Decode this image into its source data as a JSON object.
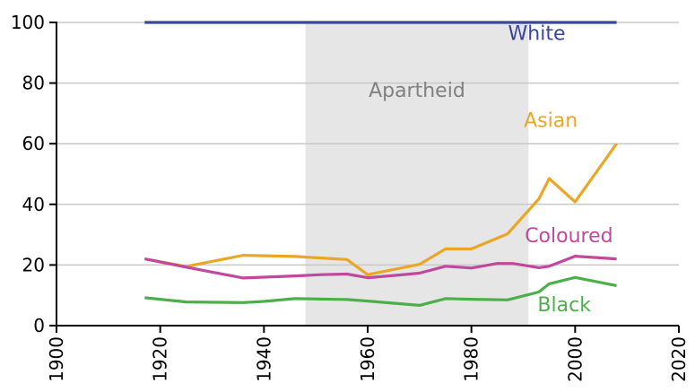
{
  "chart_data": {
    "type": "line",
    "title": "",
    "xlabel": "",
    "ylabel": "",
    "xlim": [
      1900,
      2020
    ],
    "ylim": [
      0,
      100
    ],
    "x_ticks": [
      "1900",
      "1920",
      "1940",
      "1960",
      "1980",
      "2000",
      "2020"
    ],
    "y_ticks": [
      "0",
      "20",
      "40",
      "60",
      "80",
      "100"
    ],
    "grid": "horizontal",
    "shaded_period": {
      "label": "Apartheid",
      "start": 1948,
      "end": 1991,
      "color": "#e6e6e6",
      "label_color": "#808080"
    },
    "series": [
      {
        "name": "White",
        "color": "#3a4799",
        "points": [
          [
            1917,
            100
          ],
          [
            2008,
            100
          ]
        ]
      },
      {
        "name": "Asian",
        "color": "#e8a726",
        "points": [
          [
            1917,
            22
          ],
          [
            1925,
            19.5
          ],
          [
            1936,
            23.2
          ],
          [
            1946,
            22.8
          ],
          [
            1951,
            22.3
          ],
          [
            1956,
            21.8
          ],
          [
            1960,
            16.8
          ],
          [
            1970,
            20.2
          ],
          [
            1975,
            25.3
          ],
          [
            1980,
            25.3
          ],
          [
            1987,
            30.3
          ],
          [
            1993,
            41.8
          ],
          [
            1995,
            48.5
          ],
          [
            2000,
            40.8
          ],
          [
            2008,
            60
          ]
        ]
      },
      {
        "name": "Coloured",
        "color": "#c1489c",
        "points": [
          [
            1917,
            22
          ],
          [
            1925,
            19.3
          ],
          [
            1936,
            15.7
          ],
          [
            1946,
            16.4
          ],
          [
            1951,
            16.8
          ],
          [
            1956,
            17
          ],
          [
            1960,
            15.8
          ],
          [
            1966,
            16.7
          ],
          [
            1970,
            17.3
          ],
          [
            1975,
            19.6
          ],
          [
            1980,
            19
          ],
          [
            1985,
            20.5
          ],
          [
            1988,
            20.5
          ],
          [
            1993,
            19.1
          ],
          [
            1995,
            19.6
          ],
          [
            2000,
            22.9
          ],
          [
            2008,
            22
          ]
        ]
      },
      {
        "name": "Black",
        "color": "#4daf4a",
        "points": [
          [
            1917,
            9.2
          ],
          [
            1925,
            7.8
          ],
          [
            1936,
            7.6
          ],
          [
            1940,
            8
          ],
          [
            1946,
            8.9
          ],
          [
            1956,
            8.6
          ],
          [
            1960,
            8.1
          ],
          [
            1970,
            6.7
          ],
          [
            1975,
            8.9
          ],
          [
            1980,
            8.7
          ],
          [
            1987,
            8.5
          ],
          [
            1993,
            11.1
          ],
          [
            1995,
            13.8
          ],
          [
            2000,
            15.9
          ],
          [
            2008,
            13.2
          ]
        ]
      }
    ],
    "series_labels": [
      {
        "text": "White",
        "color": "#3a4799",
        "x": 1992.6,
        "y": 94.2
      },
      {
        "text": "Asian",
        "color": "#e8a726",
        "x": 1995.3,
        "y": 65.6
      },
      {
        "text": "Coloured",
        "color": "#c1489c",
        "x": 1998.8,
        "y": 27.5
      },
      {
        "text": "Black",
        "color": "#4daf4a",
        "x": 1997.9,
        "y": 4.8
      }
    ],
    "axis_color": "#000000",
    "grid_color": "#c8c8c8"
  }
}
